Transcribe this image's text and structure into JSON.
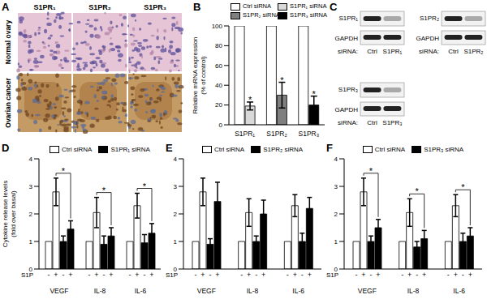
{
  "figure": {
    "panel_A": {
      "panel": "A",
      "columns": [
        "S1PR₁",
        "S1PR₂",
        "S1PR₃"
      ],
      "rows": [
        "Normal ovary",
        "Ovarian cancer"
      ]
    },
    "panel_C": {
      "panel": "C",
      "blots": [
        {
          "target": "S1PR₁",
          "loading": "GAPDH",
          "siRNA_label": "siRNA:",
          "lanes": [
            "Ctrl",
            "S1PR₁"
          ]
        },
        {
          "target": "S1PR₂",
          "loading": "GAPDH",
          "siRNA_label": "siRNA:",
          "lanes": [
            "Ctrl",
            "S1PR₂"
          ]
        },
        {
          "target": "S1PR₃",
          "loading": "GAPDH",
          "siRNA_label": "siRNA:",
          "lanes": [
            "Ctrl",
            "S1PR₃"
          ]
        }
      ]
    }
  },
  "chart_data": [
    {
      "panel": "B",
      "type": "bar",
      "categories": [
        "S1PR₁",
        "S1PR₂",
        "S1PR₃"
      ],
      "series": [
        {
          "name": "Ctrl siRNA",
          "color": "#ffffff",
          "values": [
            100,
            100,
            100
          ]
        },
        {
          "name": "S1PR₁ siRNA",
          "color": "#d9d9d9",
          "values": [
            19,
            null,
            null
          ],
          "errors": [
            4,
            null,
            null
          ]
        },
        {
          "name": "S1PR₂ siRNA",
          "color": "#7f7f7f",
          "values": [
            null,
            30,
            null
          ],
          "errors": [
            null,
            13,
            null
          ]
        },
        {
          "name": "S1PR₃ siRNA",
          "color": "#000000",
          "values": [
            null,
            null,
            20
          ],
          "errors": [
            null,
            null,
            9
          ]
        }
      ],
      "ylim": [
        0,
        100
      ],
      "yticks": [
        0,
        20,
        40,
        60,
        80,
        100
      ],
      "y_label": [
        "Relative mRNA expression",
        "(% of control)"
      ],
      "significance": {
        "label": "*",
        "significant": [
          true,
          true,
          true
        ]
      },
      "legend": "top-right",
      "grid": false
    },
    {
      "panel": "D",
      "type": "bar",
      "categories": [
        "VEGF",
        "IL-8",
        "IL-6"
      ],
      "group_labels": {
        "title": "S1P",
        "values": [
          "-",
          "+"
        ]
      },
      "series": [
        {
          "name": "Ctrl siRNA",
          "color": "#ffffff",
          "values": [
            [
              1,
              2.8
            ],
            [
              1,
              2.05
            ],
            [
              1,
              2.3
            ]
          ],
          "errors": [
            [
              null,
              0.5
            ],
            [
              null,
              0.55
            ],
            [
              null,
              0.45
            ]
          ]
        },
        {
          "name": "S1PR₁ siRNA",
          "color": "#000000",
          "values": [
            [
              1.0,
              1.45
            ],
            [
              0.9,
              1.2
            ],
            [
              0.95,
              1.3
            ]
          ],
          "errors": [
            [
              0.2,
              0.3
            ],
            [
              0.3,
              0.3
            ],
            [
              0.3,
              0.35
            ]
          ]
        }
      ],
      "ylim": [
        0,
        4
      ],
      "yticks": [
        0,
        1,
        2,
        3,
        4
      ],
      "y_label": [
        "Cytokine release levels",
        "(fold over basal)"
      ],
      "significance": {
        "label": "*",
        "significant": [
          true,
          true,
          true
        ]
      },
      "legend": "top",
      "grid": false
    },
    {
      "panel": "E",
      "type": "bar",
      "categories": [
        "VEGF",
        "IL-8",
        "IL-6"
      ],
      "group_labels": {
        "title": "S1P",
        "values": [
          "-",
          "+"
        ]
      },
      "series": [
        {
          "name": "Ctrl siRNA",
          "color": "#ffffff",
          "values": [
            [
              1,
              2.8
            ],
            [
              1,
              2.05
            ],
            [
              1,
              2.3
            ]
          ],
          "errors": [
            [
              null,
              0.5
            ],
            [
              null,
              0.5
            ],
            [
              null,
              0.4
            ]
          ]
        },
        {
          "name": "S1PR₂ siRNA",
          "color": "#000000",
          "values": [
            [
              0.9,
              2.45
            ],
            [
              1.0,
              2.0
            ],
            [
              1.0,
              2.2
            ]
          ],
          "errors": [
            [
              0.2,
              0.7
            ],
            [
              0.2,
              0.5
            ],
            [
              0.3,
              0.4
            ]
          ]
        }
      ],
      "ylim": [
        0,
        4
      ],
      "yticks": [
        0,
        1,
        2,
        3,
        4
      ],
      "significance": {
        "label": "*",
        "significant": [
          false,
          false,
          false
        ]
      },
      "legend": "top",
      "grid": false
    },
    {
      "panel": "F",
      "type": "bar",
      "categories": [
        "VEGF",
        "IL-8",
        "IL-6"
      ],
      "group_labels": {
        "title": "S1P",
        "values": [
          "-",
          "+"
        ]
      },
      "series": [
        {
          "name": "Ctrl siRNA",
          "color": "#ffffff",
          "values": [
            [
              1,
              2.8
            ],
            [
              1,
              2.05
            ],
            [
              1,
              2.3
            ]
          ],
          "errors": [
            [
              null,
              0.5
            ],
            [
              null,
              0.5
            ],
            [
              null,
              0.4
            ]
          ]
        },
        {
          "name": "S1PR₃ siRNA",
          "color": "#000000",
          "values": [
            [
              1.0,
              1.5
            ],
            [
              0.8,
              1.1
            ],
            [
              1.0,
              1.2
            ]
          ],
          "errors": [
            [
              0.2,
              0.3
            ],
            [
              0.2,
              0.3
            ],
            [
              0.3,
              0.3
            ]
          ]
        }
      ],
      "ylim": [
        0,
        4
      ],
      "yticks": [
        0,
        1,
        2,
        3,
        4
      ],
      "significance": {
        "label": "*",
        "significant": [
          true,
          true,
          true
        ]
      },
      "legend": "top",
      "grid": false
    }
  ]
}
